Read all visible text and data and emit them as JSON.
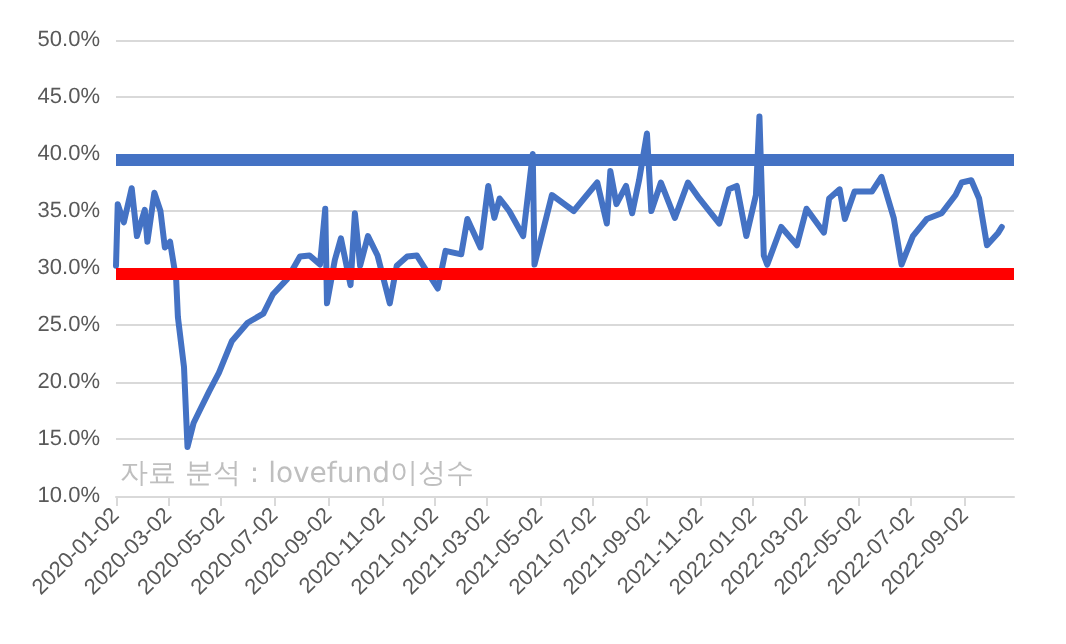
{
  "chart_data": {
    "type": "line",
    "annotations": [
      "자료 분석 : lovefund이성수"
    ],
    "x": [
      "2020-01-02",
      "2020-01-04",
      "2020-01-11",
      "2020-01-20",
      "2020-01-26",
      "2020-02-04",
      "2020-02-07",
      "2020-02-15",
      "2020-02-22",
      "2020-02-27",
      "2020-03-04",
      "2020-03-11",
      "2020-03-13",
      "2020-03-20",
      "2020-03-24",
      "2020-03-31",
      "2020-04-07",
      "2020-04-18",
      "2020-04-29",
      "2020-05-14",
      "2020-06-01",
      "2020-06-19",
      "2020-06-30",
      "2020-07-16",
      "2020-07-31",
      "2020-08-11",
      "2020-08-23",
      "2020-08-29",
      "2020-08-31",
      "2020-09-09",
      "2020-09-16",
      "2020-09-27",
      "2020-10-02",
      "2020-10-08",
      "2020-10-17",
      "2020-10-28",
      "2020-11-11",
      "2020-11-19",
      "2020-12-01",
      "2020-12-12",
      "2021-01-05",
      "2021-01-14",
      "2021-02-01",
      "2021-02-08",
      "2021-02-23",
      "2021-03-04",
      "2021-03-11",
      "2021-03-17",
      "2021-03-28",
      "2021-04-13",
      "2021-04-24",
      "2021-04-26",
      "2021-05-16",
      "2021-06-10",
      "2021-07-07",
      "2021-07-18",
      "2021-07-22",
      "2021-07-29",
      "2021-08-09",
      "2021-08-16",
      "2021-08-24",
      "2021-09-02",
      "2021-09-07",
      "2021-09-18",
      "2021-10-04",
      "2021-10-19",
      "2021-11-01",
      "2021-11-24",
      "2021-12-05",
      "2021-12-14",
      "2021-12-25",
      "2022-01-05",
      "2022-01-09",
      "2022-01-14",
      "2022-01-18",
      "2022-02-03",
      "2022-02-21",
      "2022-03-04",
      "2022-03-24",
      "2022-03-30",
      "2022-04-11",
      "2022-04-17",
      "2022-04-28",
      "2022-05-18",
      "2022-05-29",
      "2022-06-12",
      "2022-06-21",
      "2022-07-04",
      "2022-07-20",
      "2022-08-06",
      "2022-08-22",
      "2022-08-29",
      "2022-09-09",
      "2022-09-18",
      "2022-09-27",
      "2022-10-10",
      "2022-10-14"
    ],
    "series": [
      {
        "color": "#4472c4",
        "values": [
          30.2,
          35.6,
          34,
          37,
          32.8,
          35.1,
          32.3,
          36.6,
          35,
          31.8,
          32.3,
          29,
          25.7,
          21.3,
          14.3,
          16.4,
          17.5,
          19.2,
          20.8,
          23.6,
          25.2,
          26,
          27.7,
          29,
          31,
          31.1,
          30.3,
          35.2,
          26.9,
          30.7,
          32.6,
          28.5,
          34.8,
          30.2,
          32.8,
          31.1,
          26.9,
          30.2,
          31,
          31.1,
          28.2,
          31.5,
          31.2,
          34.3,
          31.8,
          37.2,
          34.4,
          36.1,
          35,
          32.8,
          40,
          30.3,
          36.4,
          35,
          37.5,
          33.9,
          38.5,
          35.6,
          37.2,
          34.8,
          37.7,
          41.8,
          35,
          37.5,
          34.4,
          37.5,
          36.1,
          33.9,
          36.9,
          37.2,
          32.8,
          36.4,
          43.3,
          31.1,
          30.3,
          33.6,
          32,
          35.2,
          33.1,
          36.1,
          36.9,
          34.3,
          36.7,
          36.7,
          38,
          34.4,
          30.3,
          32.8,
          34.3,
          34.8,
          36.4,
          37.5,
          37.7,
          36.1,
          32,
          33.1,
          33.6
        ]
      }
    ],
    "xlim": [
      "2020-01-02",
      "2022-10-28"
    ],
    "xticks": [
      "2020-01-02",
      "2020-03-02",
      "2020-05-02",
      "2020-07-02",
      "2020-09-02",
      "2020-11-02",
      "2021-01-02",
      "2021-03-02",
      "2021-05-02",
      "2021-07-02",
      "2021-09-02",
      "2021-11-02",
      "2022-01-02",
      "2022-03-02",
      "2022-05-02",
      "2022-07-02",
      "2022-09-02"
    ],
    "ylim": [
      10,
      50
    ],
    "yticks": [
      {
        "value": 10,
        "label": "10.0%"
      },
      {
        "value": 15,
        "label": "15.0%"
      },
      {
        "value": 20,
        "label": "20.0%"
      },
      {
        "value": 25,
        "label": "25.0%"
      },
      {
        "value": 30,
        "label": "30.0%"
      },
      {
        "value": 35,
        "label": "35.0%"
      },
      {
        "value": 40,
        "label": "40.0%"
      },
      {
        "value": 45,
        "label": "45.0%"
      },
      {
        "value": 50,
        "label": "50.0%"
      }
    ],
    "ref_lines": [
      {
        "axis": "y",
        "value": 39.5,
        "color": "#4472c4"
      },
      {
        "axis": "y",
        "value": 29.5,
        "color": "#ff0000"
      }
    ],
    "grid": "y",
    "marker": "none",
    "line_style": "solid"
  }
}
